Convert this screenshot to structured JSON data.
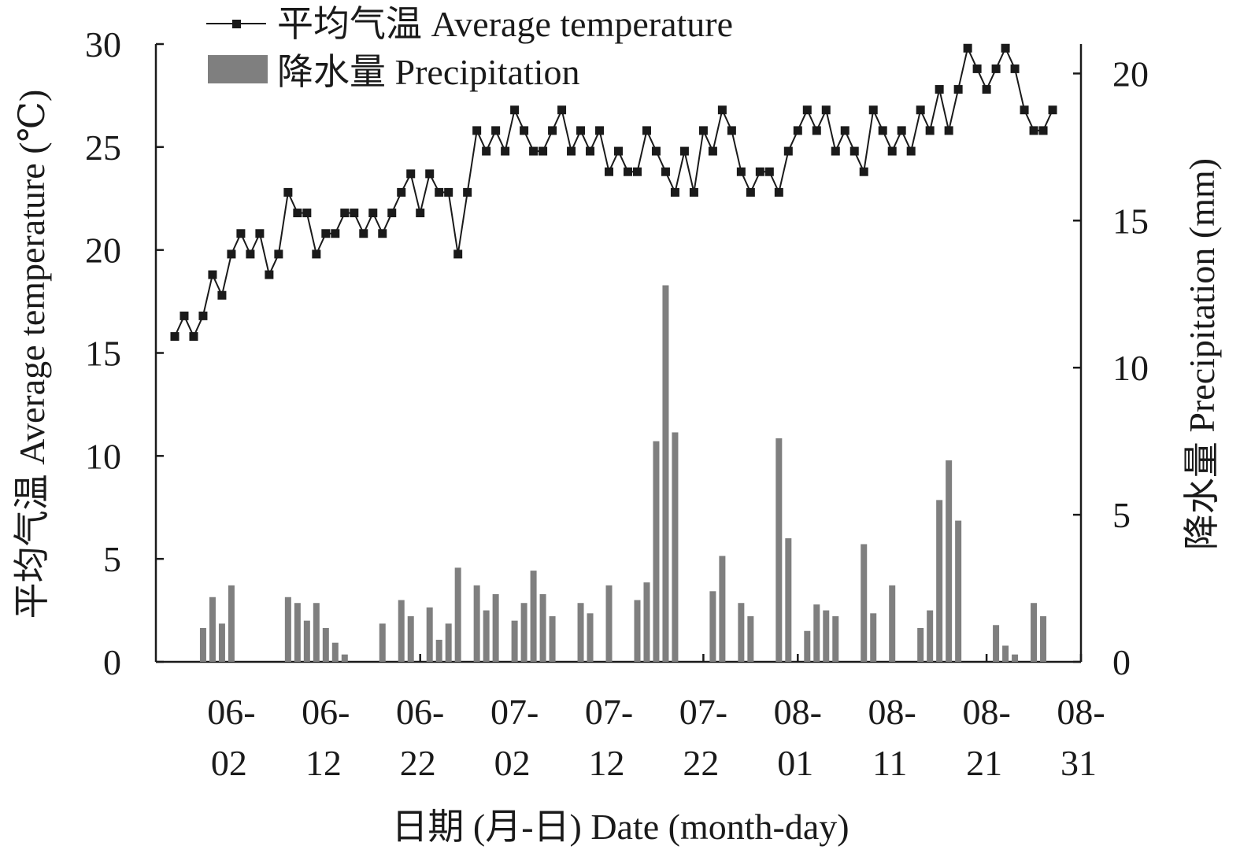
{
  "chart_data": {
    "type": "bar+line",
    "xlabel": "日期 (月-日) Date (month-day)",
    "ylabel_left": "平均气温 Average temperature (℃)",
    "ylabel_right": "降水量 Precipitation (mm)",
    "ylim_left": [
      0,
      30
    ],
    "ylim_right": [
      0,
      21
    ],
    "yticks_left": [
      "0",
      "5",
      "10",
      "15",
      "20",
      "25",
      "30"
    ],
    "yticks_right": [
      "0",
      "5",
      "10",
      "15",
      "20"
    ],
    "x_start": "05-25",
    "x_end": "08-31",
    "x_ticks": [
      {
        "top": "06-",
        "bottom": "02",
        "date": "06-02"
      },
      {
        "top": "06-",
        "bottom": "12",
        "date": "06-12"
      },
      {
        "top": "06-",
        "bottom": "22",
        "date": "06-22"
      },
      {
        "top": "07-",
        "bottom": "02",
        "date": "07-02"
      },
      {
        "top": "07-",
        "bottom": "12",
        "date": "07-12"
      },
      {
        "top": "07-",
        "bottom": "22",
        "date": "07-22"
      },
      {
        "top": "08-",
        "bottom": "01",
        "date": "08-01"
      },
      {
        "top": "08-",
        "bottom": "11",
        "date": "08-11"
      },
      {
        "top": "08-",
        "bottom": "21",
        "date": "08-21"
      },
      {
        "top": "08-",
        "bottom": "31",
        "date": "08-31"
      }
    ],
    "legend": [
      {
        "label": "平均气温 Average temperature",
        "kind": "line-marker"
      },
      {
        "label": "降水量 Precipitation",
        "kind": "bar"
      }
    ],
    "legend_position": "top-left",
    "series": [
      {
        "axis": "left",
        "kind": "line",
        "color": "#1a1a1a",
        "dates": [
          "05-27",
          "05-28",
          "05-29",
          "05-30",
          "05-31",
          "06-01",
          "06-02",
          "06-03",
          "06-04",
          "06-05",
          "06-06",
          "06-07",
          "06-08",
          "06-09",
          "06-10",
          "06-11",
          "06-12",
          "06-13",
          "06-14",
          "06-15",
          "06-16",
          "06-17",
          "06-18",
          "06-19",
          "06-20",
          "06-21",
          "06-22",
          "06-23",
          "06-24",
          "06-25",
          "06-26",
          "06-27",
          "06-28",
          "06-29",
          "06-30",
          "07-01",
          "07-02",
          "07-03",
          "07-04",
          "07-05",
          "07-06",
          "07-07",
          "07-08",
          "07-09",
          "07-10",
          "07-11",
          "07-12",
          "07-13",
          "07-14",
          "07-15",
          "07-16",
          "07-17",
          "07-18",
          "07-19",
          "07-20",
          "07-21",
          "07-22",
          "07-23",
          "07-24",
          "07-25",
          "07-26",
          "07-27",
          "07-28",
          "07-29",
          "07-30",
          "07-31",
          "08-01",
          "08-02",
          "08-03",
          "08-04",
          "08-05",
          "08-06",
          "08-07",
          "08-08",
          "08-09",
          "08-10",
          "08-11",
          "08-12",
          "08-13",
          "08-14",
          "08-15",
          "08-16",
          "08-17",
          "08-18",
          "08-19",
          "08-20",
          "08-21",
          "08-22",
          "08-23",
          "08-24",
          "08-25",
          "08-26",
          "08-27",
          "08-28"
        ],
        "values": [
          15.8,
          16.8,
          15.8,
          16.8,
          18.8,
          17.8,
          19.8,
          20.8,
          19.8,
          20.8,
          18.8,
          19.8,
          22.8,
          21.8,
          21.8,
          19.8,
          20.8,
          20.8,
          21.8,
          21.8,
          20.8,
          21.8,
          20.8,
          21.8,
          22.8,
          23.7,
          21.8,
          23.7,
          22.8,
          22.8,
          19.8,
          22.8,
          25.8,
          24.8,
          25.8,
          24.8,
          26.8,
          25.8,
          24.8,
          24.8,
          25.8,
          26.8,
          24.8,
          25.8,
          24.8,
          25.8,
          23.8,
          24.8,
          23.8,
          23.8,
          25.8,
          24.8,
          23.8,
          22.8,
          24.8,
          22.8,
          25.8,
          24.8,
          26.8,
          25.8,
          23.8,
          22.8,
          23.8,
          23.8,
          22.8,
          24.8,
          25.8,
          26.8,
          25.8,
          26.8,
          24.8,
          25.8,
          24.8,
          23.8,
          26.8,
          25.8,
          24.8,
          25.8,
          24.8,
          26.8,
          25.8,
          27.8,
          25.8,
          27.8,
          29.8,
          28.8,
          27.8,
          28.8,
          29.8,
          28.8,
          26.8,
          25.8,
          25.8,
          26.8
        ]
      },
      {
        "axis": "right",
        "kind": "bar",
        "color": "#7f7f7f",
        "dates": [
          "05-30",
          "05-31",
          "06-01",
          "06-02",
          "06-08",
          "06-09",
          "06-10",
          "06-11",
          "06-12",
          "06-13",
          "06-14",
          "06-18",
          "06-20",
          "06-21",
          "06-23",
          "06-24",
          "06-25",
          "06-26",
          "06-28",
          "06-29",
          "06-30",
          "07-02",
          "07-03",
          "07-04",
          "07-05",
          "07-06",
          "07-09",
          "07-10",
          "07-12",
          "07-15",
          "07-16",
          "07-17",
          "07-18",
          "07-19",
          "07-23",
          "07-24",
          "07-26",
          "07-27",
          "07-30",
          "07-31",
          "08-02",
          "08-03",
          "08-04",
          "08-05",
          "08-08",
          "08-09",
          "08-11",
          "08-14",
          "08-15",
          "08-16",
          "08-17",
          "08-18",
          "08-22",
          "08-23",
          "08-24",
          "08-26",
          "08-27"
        ],
        "values": [
          1.15,
          2.2,
          1.3,
          2.6,
          2.2,
          2.0,
          1.4,
          2.0,
          1.15,
          0.65,
          0.25,
          1.3,
          2.1,
          1.55,
          1.85,
          0.75,
          1.3,
          3.2,
          2.6,
          1.75,
          2.3,
          1.4,
          2.0,
          3.1,
          2.3,
          1.55,
          2.0,
          1.65,
          2.6,
          2.1,
          2.7,
          7.5,
          12.8,
          7.8,
          2.4,
          3.6,
          2.0,
          1.55,
          7.6,
          4.2,
          1.05,
          1.95,
          1.75,
          1.55,
          4.0,
          1.65,
          2.6,
          1.15,
          1.75,
          5.5,
          6.85,
          4.8,
          1.25,
          0.55,
          0.25,
          2.0,
          1.55
        ]
      }
    ]
  }
}
